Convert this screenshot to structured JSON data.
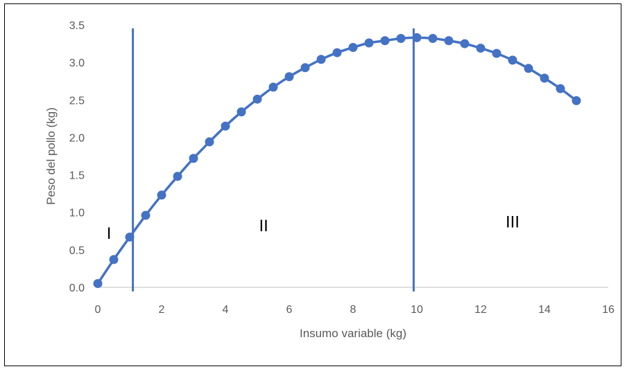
{
  "chart_data": {
    "type": "line",
    "title": "",
    "xlabel": "Insumo variable (kg)",
    "ylabel": "Peso del pollo (kg)",
    "xlim": [
      0,
      16
    ],
    "ylim": [
      0,
      3.5
    ],
    "x_ticks": [
      "0",
      "2",
      "4",
      "6",
      "8",
      "10",
      "12",
      "14",
      "16"
    ],
    "y_ticks": [
      "0.0",
      "0.5",
      "1.0",
      "1.5",
      "2.0",
      "2.5",
      "3.0",
      "3.5"
    ],
    "grid": false,
    "legend": "none",
    "color": "#4472C4",
    "series": [
      {
        "x": [
          0,
          0.5,
          1,
          1.5,
          2,
          2.5,
          3,
          3.5,
          4,
          4.5,
          5,
          5.5,
          6,
          6.5,
          7,
          7.5,
          8,
          8.5,
          9,
          9.5,
          10,
          10.5,
          11,
          11.5,
          12,
          12.5,
          13,
          13.5,
          14,
          14.5,
          15
        ],
        "y": [
          0.05,
          0.37,
          0.67,
          0.96,
          1.23,
          1.48,
          1.72,
          1.94,
          2.15,
          2.34,
          2.51,
          2.67,
          2.81,
          2.93,
          3.04,
          3.13,
          3.2,
          3.26,
          3.29,
          3.32,
          3.33,
          3.32,
          3.29,
          3.25,
          3.19,
          3.12,
          3.03,
          2.92,
          2.79,
          2.65,
          2.49
        ]
      }
    ],
    "vertical_lines": [
      1.1,
      9.9
    ],
    "regions": [
      {
        "label": "I",
        "x": 0.35,
        "y": 0.73
      },
      {
        "label": "II",
        "x": 5.2,
        "y": 0.83
      },
      {
        "label": "III",
        "x": 13.0,
        "y": 0.88
      }
    ]
  }
}
